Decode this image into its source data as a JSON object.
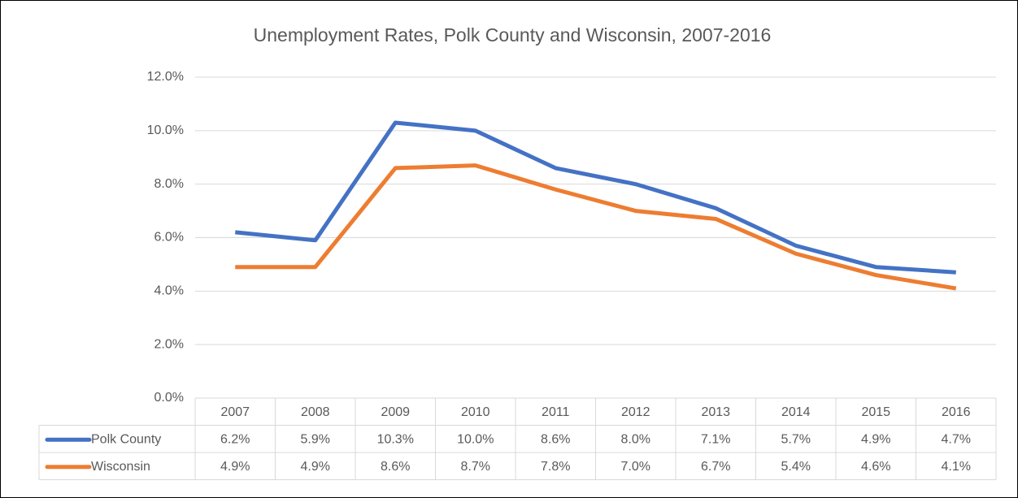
{
  "chart_data": {
    "type": "line",
    "title": "Unemployment Rates, Polk County and Wisconsin, 2007-2016",
    "categories": [
      "2007",
      "2008",
      "2009",
      "2010",
      "2011",
      "2012",
      "2013",
      "2014",
      "2015",
      "2016"
    ],
    "series": [
      {
        "name": "Polk County",
        "color": "#4472c4",
        "values": [
          6.2,
          5.9,
          10.3,
          10.0,
          8.6,
          8.0,
          7.1,
          5.7,
          4.9,
          4.7
        ],
        "value_labels": [
          "6.2%",
          "5.9%",
          "10.3%",
          "10.0%",
          "8.6%",
          "8.0%",
          "7.1%",
          "5.7%",
          "4.9%",
          "4.7%"
        ]
      },
      {
        "name": "Wisconsin",
        "color": "#ed7d31",
        "values": [
          4.9,
          4.9,
          8.6,
          8.7,
          7.8,
          7.0,
          6.7,
          5.4,
          4.6,
          4.1
        ],
        "value_labels": [
          "4.9%",
          "4.9%",
          "8.6%",
          "8.7%",
          "7.8%",
          "7.0%",
          "6.7%",
          "5.4%",
          "4.6%",
          "4.1%"
        ]
      }
    ],
    "ylim": [
      0,
      12
    ],
    "yticks": [
      {
        "value": 0,
        "label": "0.0%"
      },
      {
        "value": 2,
        "label": "2.0%"
      },
      {
        "value": 4,
        "label": "4.0%"
      },
      {
        "value": 6,
        "label": "6.0%"
      },
      {
        "value": 8,
        "label": "8.0%"
      },
      {
        "value": 10,
        "label": "10.0%"
      },
      {
        "value": 12,
        "label": "12.0%"
      }
    ],
    "grid": true,
    "data_table": true
  }
}
